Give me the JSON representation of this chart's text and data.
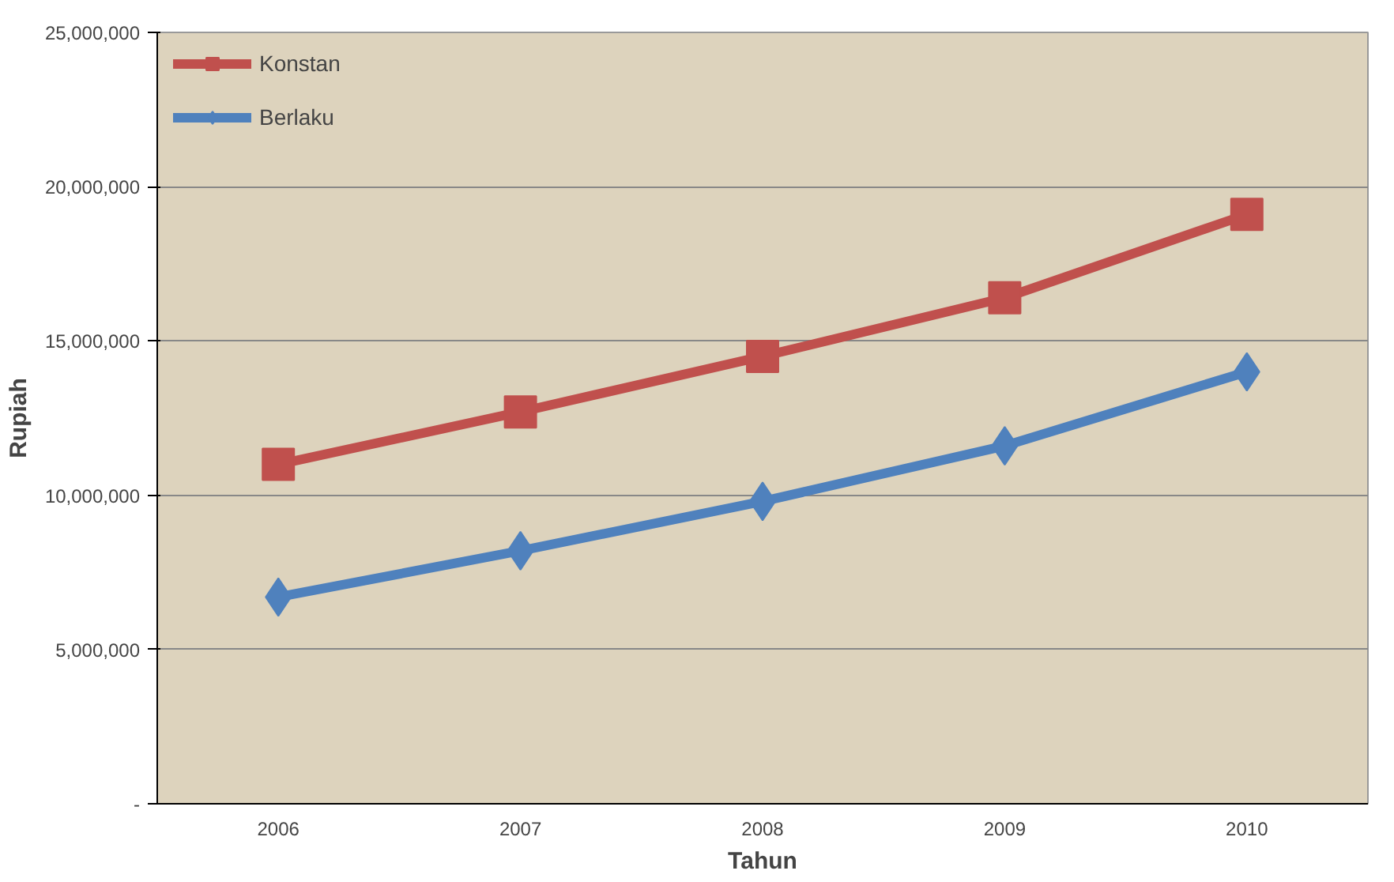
{
  "chart_data": {
    "type": "line",
    "xlabel": "Tahun",
    "ylabel": "Rupiah",
    "categories": [
      "2006",
      "2007",
      "2008",
      "2009",
      "2010"
    ],
    "series": [
      {
        "name": "Konstan",
        "color": "#c0504d",
        "marker": "square",
        "values": [
          11000000,
          12700000,
          14500000,
          16400000,
          19100000
        ]
      },
      {
        "name": "Berlaku",
        "color": "#4f81bd",
        "marker": "diamond",
        "values": [
          6700000,
          8200000,
          9800000,
          11600000,
          14000000
        ]
      }
    ],
    "ylim": [
      0,
      25000000
    ],
    "yticks": [
      {
        "value": 0,
        "label": "-"
      },
      {
        "value": 5000000,
        "label": "5,000,000"
      },
      {
        "value": 10000000,
        "label": "10,000,000"
      },
      {
        "value": 15000000,
        "label": "15,000,000"
      },
      {
        "value": 20000000,
        "label": "20,000,000"
      },
      {
        "value": 25000000,
        "label": "25,000,000"
      }
    ],
    "grid": "y",
    "legend": "top left"
  }
}
